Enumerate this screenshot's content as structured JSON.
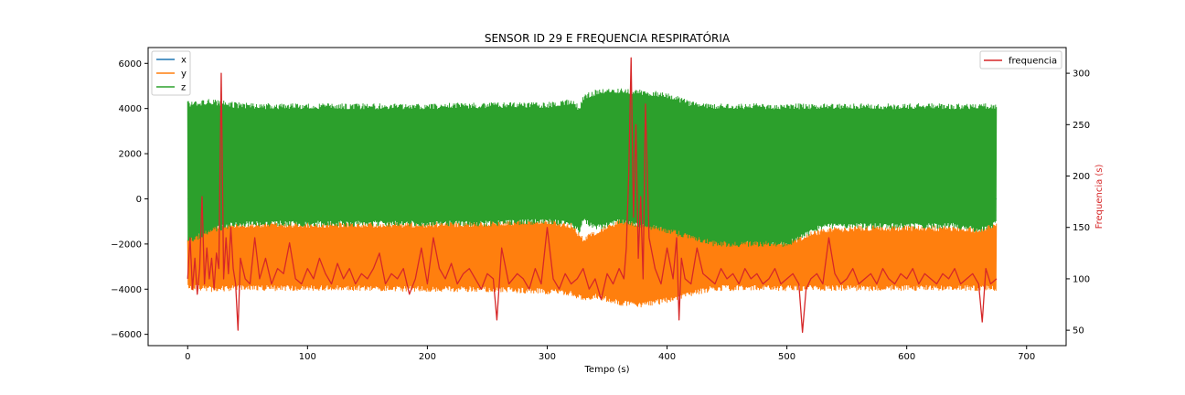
{
  "chart_data": {
    "type": "line",
    "title": "SENSOR ID 29 E FREQUENCIA RESPIRATÓRIA",
    "xlabel": "Tempo (s)",
    "ylabel": "",
    "y2label": "Frequencia (s)",
    "xlim": [
      -33,
      733
    ],
    "ylim": [
      -6500,
      6700
    ],
    "y2lim": [
      35,
      325
    ],
    "x_ticks": [
      0,
      100,
      200,
      300,
      400,
      500,
      600,
      700
    ],
    "y_ticks": [
      -6000,
      -4000,
      -2000,
      0,
      2000,
      4000,
      6000
    ],
    "y2_ticks": [
      50,
      100,
      150,
      200,
      250,
      300
    ],
    "grid": false,
    "legend_left": {
      "position": "upper-left",
      "entries": [
        "x",
        "y",
        "z"
      ]
    },
    "legend_right": {
      "position": "upper-right",
      "entries": [
        "frequencia"
      ]
    },
    "colors": {
      "x": "#1f77b4",
      "y": "#ff7f0e",
      "z": "#2ca02c",
      "frequencia": "#d62728",
      "y2label": "#d62728"
    },
    "note": "Dense noisy signals; envelopes approximated.",
    "series": [
      {
        "name": "y",
        "axis": "left",
        "kind": "band",
        "x": [
          0,
          20,
          40,
          60,
          80,
          100,
          150,
          200,
          250,
          300,
          320,
          330,
          340,
          360,
          380,
          400,
          420,
          440,
          460,
          500,
          530,
          560,
          600,
          640,
          660,
          675
        ],
        "upper": [
          -1700,
          -1200,
          -1150,
          -1150,
          -1150,
          -1150,
          -1150,
          -1150,
          -1100,
          -1000,
          -1200,
          -1800,
          -1500,
          -1000,
          -1100,
          -1200,
          -1300,
          -1500,
          -1750,
          -1950,
          -1400,
          -1300,
          -1300,
          -1300,
          -1400,
          -1100
        ],
        "lower": [
          -3900,
          -4000,
          -3950,
          -3950,
          -3950,
          -3950,
          -3950,
          -4000,
          -4000,
          -4100,
          -4200,
          -4400,
          -4300,
          -4600,
          -4700,
          -4500,
          -4200,
          -3950,
          -3950,
          -3950,
          -3950,
          -3950,
          -3950,
          -3950,
          -3950,
          -3950
        ]
      },
      {
        "name": "z",
        "axis": "left",
        "kind": "band",
        "x": [
          0,
          20,
          40,
          60,
          100,
          150,
          200,
          250,
          300,
          320,
          327,
          330,
          340,
          360,
          380,
          400,
          420,
          440,
          460,
          500,
          530,
          560,
          600,
          640,
          660,
          675
        ],
        "upper": [
          4200,
          4300,
          4150,
          4100,
          4100,
          4100,
          4100,
          4150,
          4150,
          4300,
          4000,
          4500,
          4700,
          4800,
          4700,
          4600,
          4200,
          4100,
          4100,
          4100,
          4100,
          4100,
          4100,
          4100,
          4100,
          4100
        ],
        "lower": [
          -1900,
          -1400,
          -1100,
          -1100,
          -1100,
          -1100,
          -1100,
          -1100,
          -1000,
          -1100,
          -1400,
          -900,
          -1300,
          -1000,
          -1200,
          -1400,
          -1700,
          -2000,
          -2000,
          -2000,
          -1200,
          -1200,
          -1200,
          -1200,
          -1400,
          -1100
        ]
      },
      {
        "name": "x",
        "axis": "left",
        "kind": "band",
        "x": [
          0,
          675
        ],
        "upper": [
          0,
          0
        ],
        "lower": [
          0,
          0
        ]
      },
      {
        "name": "frequencia",
        "axis": "right",
        "kind": "line",
        "x": [
          0,
          2,
          4,
          6,
          8,
          10,
          12,
          14,
          16,
          18,
          20,
          22,
          24,
          26,
          28,
          30,
          32,
          34,
          36,
          38,
          40,
          42,
          44,
          48,
          52,
          56,
          60,
          65,
          70,
          75,
          80,
          85,
          90,
          95,
          100,
          105,
          110,
          115,
          120,
          125,
          130,
          135,
          140,
          145,
          150,
          155,
          160,
          165,
          170,
          175,
          180,
          185,
          190,
          195,
          200,
          205,
          210,
          215,
          220,
          225,
          230,
          235,
          240,
          245,
          250,
          255,
          258,
          262,
          268,
          275,
          280,
          285,
          290,
          295,
          300,
          305,
          310,
          315,
          320,
          325,
          330,
          335,
          340,
          345,
          350,
          355,
          360,
          364,
          366,
          368,
          370,
          372,
          374,
          376,
          378,
          380,
          382,
          385,
          390,
          395,
          400,
          405,
          408,
          410,
          412,
          415,
          420,
          425,
          430,
          435,
          440,
          445,
          450,
          455,
          460,
          465,
          470,
          475,
          480,
          485,
          490,
          495,
          500,
          505,
          510,
          513,
          516,
          520,
          525,
          530,
          535,
          540,
          545,
          550,
          555,
          560,
          565,
          570,
          575,
          580,
          585,
          590,
          595,
          600,
          605,
          610,
          615,
          620,
          625,
          630,
          635,
          640,
          645,
          650,
          655,
          660,
          663,
          666,
          670,
          675
        ],
        "y": [
          100,
          140,
          90,
          120,
          85,
          110,
          180,
          95,
          130,
          100,
          120,
          90,
          125,
          110,
          300,
          100,
          140,
          105,
          150,
          110,
          95,
          50,
          120,
          100,
          95,
          140,
          100,
          120,
          95,
          110,
          105,
          135,
          100,
          95,
          110,
          100,
          120,
          105,
          95,
          115,
          100,
          110,
          95,
          105,
          100,
          110,
          125,
          95,
          105,
          100,
          110,
          85,
          100,
          130,
          95,
          140,
          110,
          100,
          115,
          95,
          105,
          110,
          100,
          90,
          105,
          100,
          60,
          130,
          95,
          105,
          100,
          90,
          110,
          95,
          150,
          100,
          90,
          105,
          95,
          100,
          110,
          90,
          100,
          80,
          105,
          95,
          110,
          100,
          130,
          200,
          315,
          160,
          250,
          120,
          180,
          100,
          270,
          140,
          110,
          95,
          130,
          100,
          140,
          60,
          120,
          100,
          95,
          130,
          105,
          100,
          95,
          110,
          100,
          105,
          95,
          110,
          100,
          105,
          95,
          100,
          110,
          95,
          100,
          105,
          95,
          48,
          90,
          100,
          105,
          95,
          140,
          105,
          95,
          100,
          110,
          95,
          100,
          105,
          95,
          110,
          100,
          95,
          105,
          100,
          110,
          95,
          105,
          100,
          95,
          105,
          100,
          110,
          95,
          100,
          105,
          95,
          58,
          110,
          95,
          100
        ]
      }
    ]
  }
}
